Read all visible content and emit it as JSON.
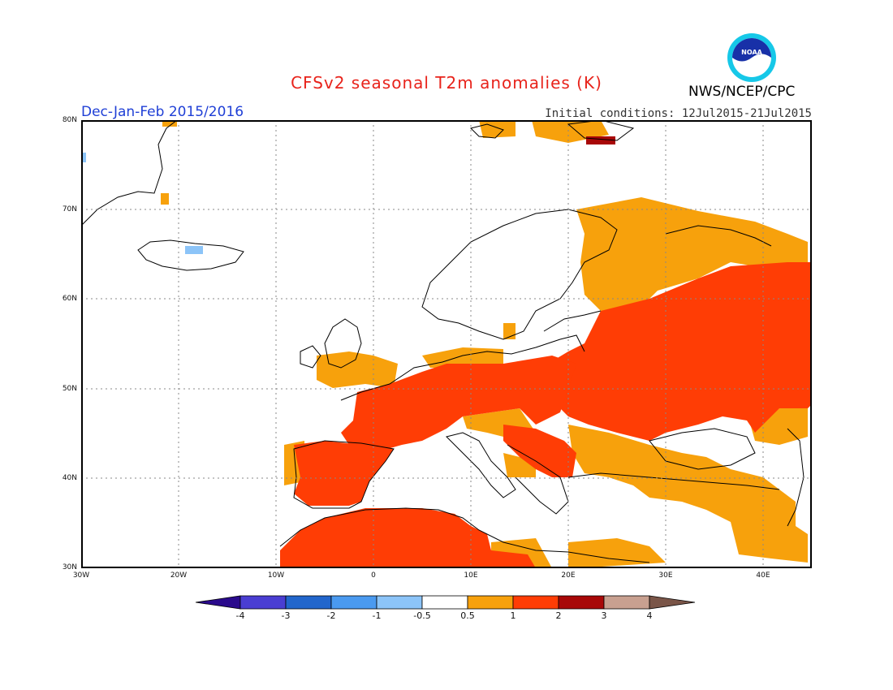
{
  "title": "CFSv2 seasonal T2m anomalies (K)",
  "period": "Dec-Jan-Feb 2015/2016",
  "initial_conditions": "Initial conditions: 12Jul2015-21Jul2015",
  "agency": "NWS/NCEP/CPC",
  "logo_text": "NOAA",
  "lat_labels": [
    "80N",
    "70N",
    "60N",
    "50N",
    "40N",
    "30N"
  ],
  "lon_labels": [
    "30W",
    "20W",
    "10W",
    "0",
    "10E",
    "20E",
    "30E",
    "40E"
  ],
  "colorbar": {
    "labels": [
      "-4",
      "-3",
      "-2",
      "-1",
      "-0.5",
      "0.5",
      "1",
      "2",
      "3",
      "4"
    ],
    "colors": [
      "#2a0a8c",
      "#4a3ed2",
      "#2266cc",
      "#4a9af0",
      "#8cc4f8",
      "#ffffff",
      "#f7a10c",
      "#ff3d05",
      "#a80808",
      "#c8a090",
      "#7a5548"
    ]
  },
  "map_colors": {
    "ocean": "#ffffff",
    "coast": "#000000",
    "anom_0_5_1": "#f7a10c",
    "anom_1_2": "#ff3d05",
    "anom_2_3": "#a80808",
    "anom_neg_1_0_5": "#8cc4f8"
  }
}
